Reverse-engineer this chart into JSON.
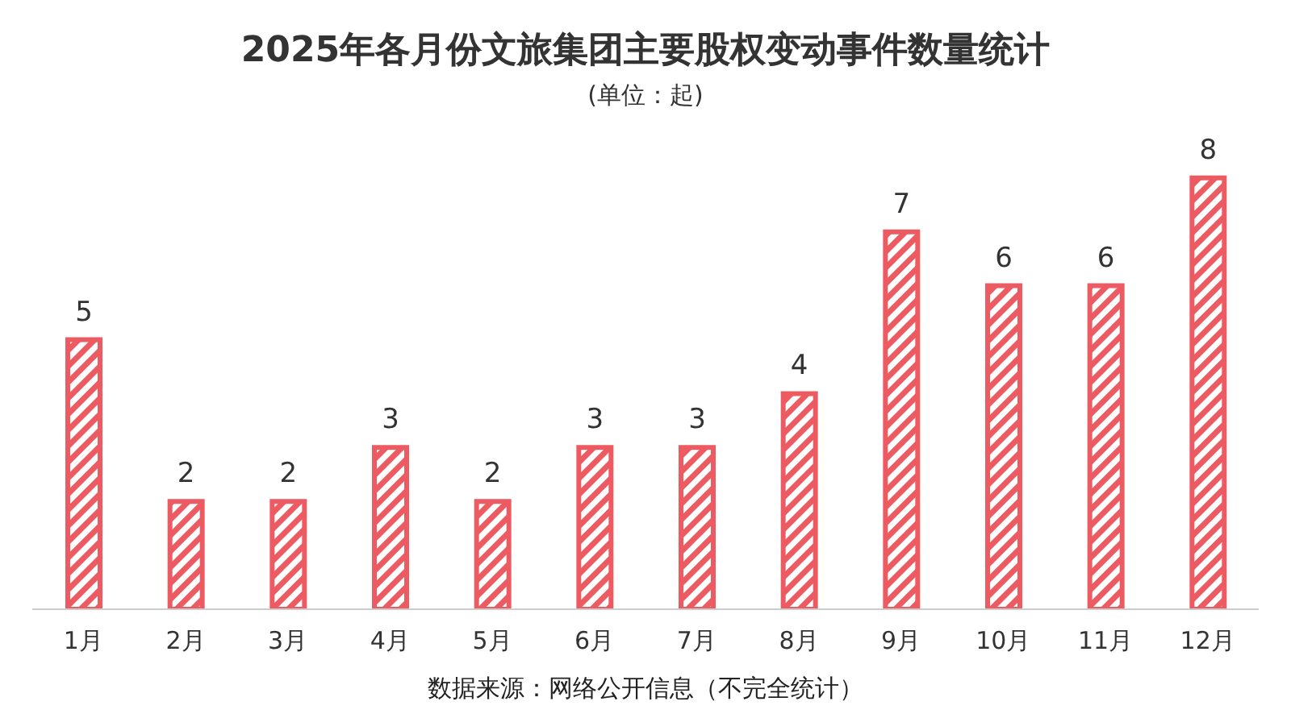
{
  "chart_data": {
    "type": "bar",
    "title": "2025年各月份文旅集团主要股权变动事件数量统计",
    "subtitle": "(单位：起)",
    "categories": [
      "1月",
      "2月",
      "3月",
      "4月",
      "5月",
      "6月",
      "7月",
      "8月",
      "9月",
      "10月",
      "11月",
      "12月"
    ],
    "values": [
      5,
      2,
      2,
      3,
      2,
      3,
      3,
      4,
      7,
      6,
      6,
      8
    ],
    "color": "#ec5a62",
    "data_labels": true,
    "tick_labels": "x",
    "annotations": [
      "数据来源：网络公开信息（不完全统计）"
    ]
  }
}
